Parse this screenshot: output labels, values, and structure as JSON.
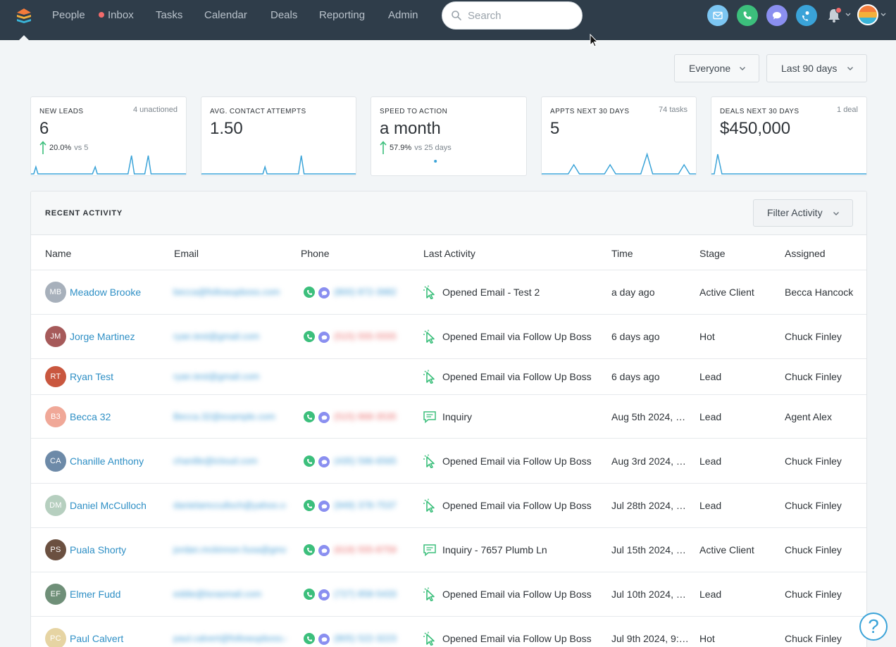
{
  "nav": {
    "items": [
      {
        "label": "People"
      },
      {
        "label": "Inbox"
      },
      {
        "label": "Tasks"
      },
      {
        "label": "Calendar"
      },
      {
        "label": "Deals"
      },
      {
        "label": "Reporting"
      },
      {
        "label": "Admin"
      }
    ],
    "search_placeholder": "Search",
    "icon_colors": {
      "email": "#7cc6f2",
      "phone": "#3cbf7c",
      "chat": "#8a8ff0",
      "dialer": "#3aa3d8"
    }
  },
  "filters": {
    "people": "Everyone",
    "range": "Last 90 days"
  },
  "stats": [
    {
      "label": "NEW LEADS",
      "side": "4 unactioned",
      "value": "6",
      "trend_pct": "20.0%",
      "trend_vs": "vs 5"
    },
    {
      "label": "AVG. CONTACT ATTEMPTS",
      "side": "",
      "value": "1.50",
      "trend_pct": "",
      "trend_vs": ""
    },
    {
      "label": "SPEED TO ACTION",
      "side": "",
      "value": "a month",
      "trend_pct": "57.9%",
      "trend_vs": "vs 25 days"
    },
    {
      "label": "APPTS NEXT 30 DAYS",
      "side": "74 tasks",
      "value": "5",
      "trend_pct": "",
      "trend_vs": ""
    },
    {
      "label": "DEALS NEXT 30 DAYS",
      "side": "1 deal",
      "value": "$450,000",
      "trend_pct": "",
      "trend_vs": ""
    }
  ],
  "activity": {
    "title": "RECENT ACTIVITY",
    "filter_label": "Filter Activity",
    "columns": [
      "Name",
      "Email",
      "Phone",
      "Last Activity",
      "Time",
      "Stage",
      "Assigned"
    ],
    "rows": [
      {
        "initials": "MB",
        "color": "#a7b0bb",
        "name": "Meadow Brooke",
        "email": "becca@followupboss.com",
        "phone": "(800) 872-3982",
        "phone_red": false,
        "has_phone": true,
        "activity_type": "click",
        "activity": "Opened Email - Test 2",
        "time": "a day ago",
        "stage": "Active Client",
        "assigned": "Becca Hancock"
      },
      {
        "initials": "JM",
        "color": "#a65a5a",
        "name": "Jorge Martinez",
        "email": "ryan.test@gmail.com",
        "phone": "(515) 555-5555",
        "phone_red": true,
        "has_phone": true,
        "activity_type": "click",
        "activity": "Opened Email via Follow Up Boss",
        "time": "6 days ago",
        "stage": "Hot",
        "assigned": "Chuck Finley"
      },
      {
        "initials": "RT",
        "color": "#c9573f",
        "name": "Ryan Test",
        "email": "ryan.test@gmail.com",
        "phone": "",
        "phone_red": false,
        "has_phone": false,
        "activity_type": "click",
        "activity": "Opened Email via Follow Up Boss",
        "time": "6 days ago",
        "stage": "Lead",
        "assigned": "Chuck Finley"
      },
      {
        "initials": "B3",
        "color": "#f0a898",
        "name": "Becca 32",
        "email": "Becca.32@example.com",
        "phone": "(515) 868-3535",
        "phone_red": true,
        "has_phone": true,
        "activity_type": "chat",
        "activity": "Inquiry",
        "time": "Aug 5th 2024, …",
        "stage": "Lead",
        "assigned": "Agent Alex"
      },
      {
        "initials": "CA",
        "color": "#6d8aa8",
        "name": "Chanille Anthony",
        "email": "chanille@icloud.com",
        "phone": "(435) 596-6565",
        "phone_red": false,
        "has_phone": true,
        "activity_type": "click",
        "activity": "Opened Email via Follow Up Boss",
        "time": "Aug 3rd 2024, 7…",
        "stage": "Lead",
        "assigned": "Chuck Finley"
      },
      {
        "initials": "DM",
        "color": "#b6cfbf",
        "name": "Daniel McCulloch",
        "email": "danielamcculloch@yahoo.com",
        "phone": "(949) 378-7537",
        "phone_red": false,
        "has_phone": true,
        "activity_type": "click",
        "activity": "Opened Email via Follow Up Boss",
        "time": "Jul 28th 2024, …",
        "stage": "Lead",
        "assigned": "Chuck Finley"
      },
      {
        "initials": "PS",
        "color": "#6b5040",
        "name": "Puala Shorty",
        "email": "jordan.mckinnon.fusa@gmail.com",
        "phone": "(619) 555-8759",
        "phone_red": true,
        "has_phone": true,
        "activity_type": "chat",
        "activity": "Inquiry - 7657 Plumb Ln",
        "time": "Jul 15th 2024, 4…",
        "stage": "Active Client",
        "assigned": "Chuck Finley"
      },
      {
        "initials": "EF",
        "color": "#6f8f78",
        "name": "Elmer Fudd",
        "email": "eddie@lorasmail.com",
        "phone": "(727) 858-5433",
        "phone_red": false,
        "has_phone": true,
        "activity_type": "click",
        "activity": "Opened Email via Follow Up Boss",
        "time": "Jul 10th 2024, 7…",
        "stage": "Lead",
        "assigned": "Chuck Finley"
      },
      {
        "initials": "PC",
        "color": "#e6d4a3",
        "name": "Paul Calvert",
        "email": "paul.calvert@followupboss.com",
        "phone": "(805) 522-3223",
        "phone_red": false,
        "has_phone": true,
        "activity_type": "click",
        "activity": "Opened Email via Follow Up Boss",
        "time": "Jul 9th 2024, 9:…",
        "stage": "Hot",
        "assigned": "Chuck Finley"
      }
    ]
  },
  "help_label": "?"
}
